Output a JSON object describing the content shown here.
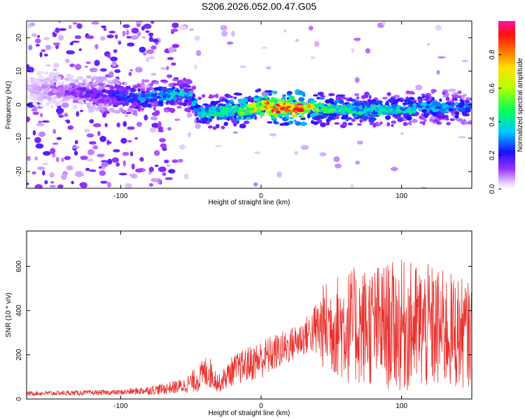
{
  "title": "S206.2026.052.00.47.G05",
  "chart_data": [
    {
      "type": "heatmap",
      "xlabel": "Height of straight line (km)",
      "ylabel": "Frequency (Hz)",
      "xlim": [
        -167,
        150
      ],
      "ylim": [
        -25,
        25
      ],
      "xticks": [
        -100,
        0,
        100
      ],
      "yticks": [
        -20,
        -10,
        0,
        10,
        20
      ],
      "colorbar": {
        "label": "Normalized spectral amplitude",
        "range": [
          0,
          1
        ],
        "ticks": [
          0.0,
          0.2,
          0.4,
          0.6,
          0.8
        ]
      },
      "ridge": [
        {
          "x": -167,
          "freq": 5,
          "amp": 0.05
        },
        {
          "x": -110,
          "freq": 3,
          "amp": 0.2
        },
        {
          "x": -90,
          "freq": 2,
          "amp": 0.3
        },
        {
          "x": -65,
          "freq": 3,
          "amp": 0.4
        },
        {
          "x": -50,
          "freq": 3,
          "amp": 0.35
        },
        {
          "x": -45,
          "freq": -2.5,
          "amp": 0.35
        },
        {
          "x": -30,
          "freq": -2,
          "amp": 0.45
        },
        {
          "x": -10,
          "freq": -1.5,
          "amp": 0.6
        },
        {
          "x": 0,
          "freq": 0,
          "amp": 0.75
        },
        {
          "x": 10,
          "freq": -1,
          "amp": 0.9
        },
        {
          "x": 30,
          "freq": -1,
          "amp": 0.9
        },
        {
          "x": 40,
          "freq": -1,
          "amp": 0.55
        },
        {
          "x": 60,
          "freq": -1.5,
          "amp": 0.45
        },
        {
          "x": 80,
          "freq": -1.5,
          "amp": 0.4
        },
        {
          "x": 100,
          "freq": -1.5,
          "amp": 0.4
        },
        {
          "x": 120,
          "freq": -0.5,
          "amp": 0.35
        },
        {
          "x": 150,
          "freq": -1,
          "amp": 0.3
        }
      ]
    },
    {
      "type": "line",
      "xlabel": "Height of straight line (km)",
      "ylabel": "SNR (10 * v/v)",
      "xlim": [
        -167,
        150
      ],
      "ylim": [
        0,
        760
      ],
      "xticks": [
        -100,
        0,
        100
      ],
      "yticks": [
        0,
        200,
        400,
        600
      ],
      "series": [
        {
          "name": "SNR",
          "color": "#e8302c",
          "envelope": [
            {
              "x": -167,
              "base": 25,
              "spread": 10
            },
            {
              "x": -100,
              "base": 30,
              "spread": 12
            },
            {
              "x": -70,
              "base": 45,
              "spread": 25
            },
            {
              "x": -55,
              "base": 60,
              "spread": 35
            },
            {
              "x": -45,
              "base": 90,
              "spread": 60
            },
            {
              "x": -38,
              "base": 130,
              "spread": 80
            },
            {
              "x": -30,
              "base": 70,
              "spread": 40
            },
            {
              "x": -20,
              "base": 130,
              "spread": 70
            },
            {
              "x": 0,
              "base": 180,
              "spread": 90
            },
            {
              "x": 20,
              "base": 240,
              "spread": 80
            },
            {
              "x": 35,
              "base": 300,
              "spread": 90
            },
            {
              "x": 45,
              "base": 330,
              "spread": 200
            },
            {
              "x": 60,
              "base": 330,
              "spread": 260
            },
            {
              "x": 80,
              "base": 330,
              "spread": 280
            },
            {
              "x": 100,
              "base": 330,
              "spread": 300
            },
            {
              "x": 120,
              "base": 320,
              "spread": 290
            },
            {
              "x": 140,
              "base": 300,
              "spread": 260
            },
            {
              "x": 150,
              "base": 290,
              "spread": 230
            }
          ]
        }
      ]
    }
  ]
}
